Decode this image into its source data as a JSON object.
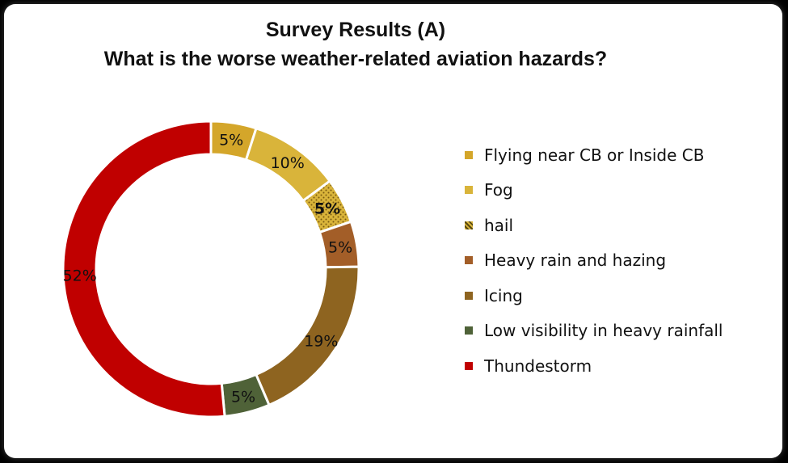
{
  "chart_data": {
    "type": "pie",
    "variant": "donut",
    "title": "Survey Results (A)",
    "subtitle": "What is the worse weather-related aviation hazards?",
    "legend_position": "right",
    "slices": [
      {
        "label": "Flying near CB or Inside CB",
        "value": 5,
        "display": "5%",
        "color": "#D4A62A",
        "pattern": "none"
      },
      {
        "label": "Fog",
        "value": 10,
        "display": "10%",
        "color": "#D9B43A",
        "pattern": "none"
      },
      {
        "label": "hail",
        "value": 5,
        "display": "5%",
        "color": "#D9B43A",
        "pattern": "dots"
      },
      {
        "label": "Heavy rain and hazing",
        "value": 5,
        "display": "5%",
        "color": "#A35E28",
        "pattern": "none"
      },
      {
        "label": "Icing",
        "value": 19,
        "display": "19%",
        "color": "#8E6420",
        "pattern": "none"
      },
      {
        "label": "Low visibility in heavy rainfall",
        "value": 5,
        "display": "5%",
        "color": "#4F6238",
        "pattern": "none"
      },
      {
        "label": "Thundestorm",
        "value": 52,
        "display": "52%",
        "color": "#C00000",
        "pattern": "none"
      }
    ]
  }
}
